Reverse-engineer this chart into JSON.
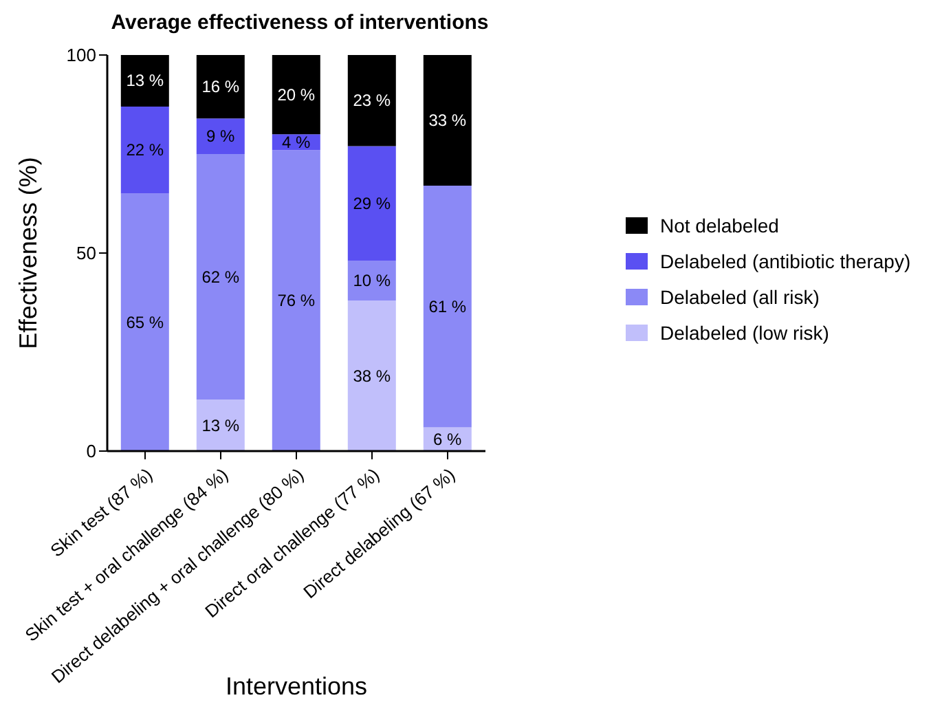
{
  "chart_data": {
    "type": "bar",
    "title": "Average effectiveness of interventions",
    "xlabel": "Interventions",
    "ylabel": "Effectiveness (%)",
    "categories": [
      "Skin test (87 %)",
      "Skin test + oral challenge (84 %)",
      "Direct delabeling + oral challenge (80 %)",
      "Direct oral challenge (77 %)",
      "Direct delabeling (67 %)"
    ],
    "stacked": true,
    "ylim": [
      0,
      100
    ],
    "yticks": [
      0,
      50,
      100
    ],
    "grid": false,
    "legend": "right",
    "series": [
      {
        "name": "Delabeled (low risk)",
        "color": "#c1bffb",
        "values": [
          0,
          13,
          0,
          38,
          6
        ],
        "value_labels": [
          null,
          "13 %",
          null,
          "38 %",
          "6 %"
        ]
      },
      {
        "name": "Delabeled (all risk)",
        "color": "#8b89f6",
        "values": [
          65,
          62,
          76,
          10,
          61
        ],
        "value_labels": [
          "65 %",
          "62 %",
          "76 %",
          "10 %",
          "61 %"
        ]
      },
      {
        "name": "Delabeled (antibiotic therapy)",
        "color": "#5a50f2",
        "values": [
          22,
          9,
          4,
          29,
          0
        ],
        "value_labels": [
          "22 %",
          "9 %",
          "4 %",
          "29 %",
          null
        ]
      },
      {
        "name": "Not delabeled",
        "color": "#000000",
        "values": [
          13,
          16,
          20,
          23,
          33
        ],
        "value_labels": [
          "13 %",
          "16 %",
          "20 %",
          "23 %",
          "33 %"
        ]
      }
    ]
  }
}
